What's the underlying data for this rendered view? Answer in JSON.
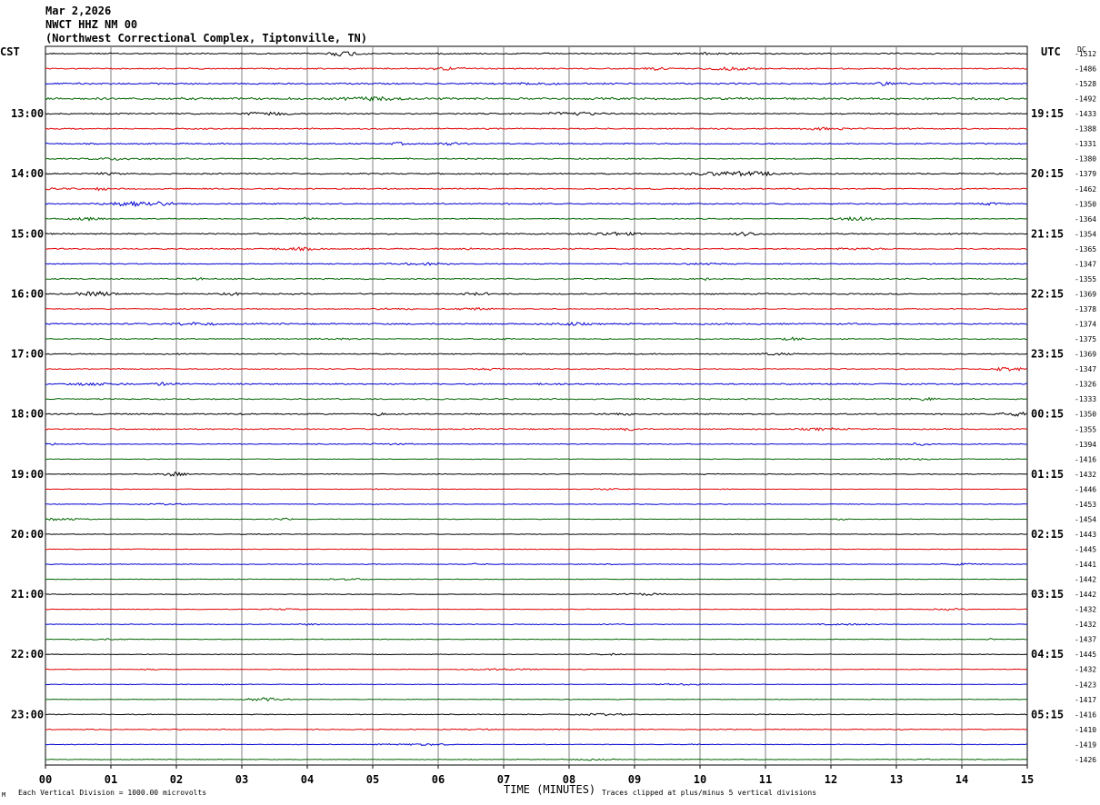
{
  "header": {
    "date": "Mar 2,2026",
    "station": "NWCT HHZ NM 00",
    "location": "(Northwest Correctional Complex, Tiptonville, TN)"
  },
  "left_tz": "CST",
  "right_tz": "UTC",
  "dc_label": "DC",
  "footer": {
    "scale_note": "Each Vertical Division = 1000.00 microvolts",
    "clip_note": "Traces clipped at plus/minus 5 vertical divisions",
    "corner_mark": "M"
  },
  "colors": {
    "trace_cycle": [
      "#000000",
      "#e00000",
      "#0000d0",
      "#006400"
    ],
    "grid": "#808080",
    "text": "#000000"
  },
  "chart_data": {
    "type": "line",
    "title": "NWCT HHZ NM 00",
    "xlabel": "TIME (MINUTES)",
    "ylabel": "",
    "xlim": [
      0,
      15
    ],
    "x_ticks": [
      "00",
      "01",
      "02",
      "03",
      "04",
      "05",
      "06",
      "07",
      "08",
      "09",
      "10",
      "11",
      "12",
      "13",
      "14",
      "15"
    ],
    "rows_per_hour": 4,
    "left_hour_labels": [
      "13:00",
      "14:00",
      "15:00",
      "16:00",
      "17:00",
      "18:00",
      "19:00",
      "20:00",
      "21:00",
      "22:00",
      "23:00"
    ],
    "right_hour_labels": [
      "19:15",
      "20:15",
      "21:15",
      "22:15",
      "23:15",
      "00:15",
      "01:15",
      "02:15",
      "03:15",
      "04:15",
      "05:15"
    ],
    "hour_label_first_row": 4,
    "dc_offsets": [
      "-1512",
      "-1486",
      "-1528",
      "-1492",
      "-1433",
      "-1388",
      "-1331",
      "-1380",
      "-1379",
      "-1462",
      "-1350",
      "-1364",
      "-1354",
      "-1365",
      "-1347",
      "-1355",
      "-1369",
      "-1378",
      "-1374",
      "-1375",
      "-1369",
      "-1347",
      "-1326",
      "-1333",
      "-1350",
      "-1355",
      "-1394",
      "-1416",
      "-1432",
      "-1446",
      "-1453",
      "-1454",
      "-1443",
      "-1445",
      "-1441",
      "-1442",
      "-1442",
      "-1432",
      "-1432",
      "-1437",
      "-1445",
      "-1432",
      "-1423",
      "-1417",
      "-1416",
      "-1410",
      "-1419",
      "-1426"
    ],
    "trace_activity": [
      0.6,
      0.6,
      0.7,
      1.0,
      0.6,
      0.6,
      0.6,
      0.6,
      0.6,
      0.6,
      0.6,
      0.5,
      0.6,
      0.6,
      0.5,
      0.6,
      0.6,
      0.5,
      0.7,
      0.5,
      0.5,
      0.5,
      0.6,
      0.6,
      0.6,
      0.6,
      0.4,
      0.3,
      0.4,
      0.3,
      0.3,
      0.3,
      0.3,
      0.3,
      0.3,
      0.3,
      0.3,
      0.3,
      0.3,
      0.3,
      0.3,
      0.3,
      0.3,
      0.3,
      0.4,
      0.4,
      0.3,
      0.3
    ],
    "y_units": "microvolts",
    "vertical_division_microvolts": 1000.0,
    "clip_divisions": 5
  }
}
